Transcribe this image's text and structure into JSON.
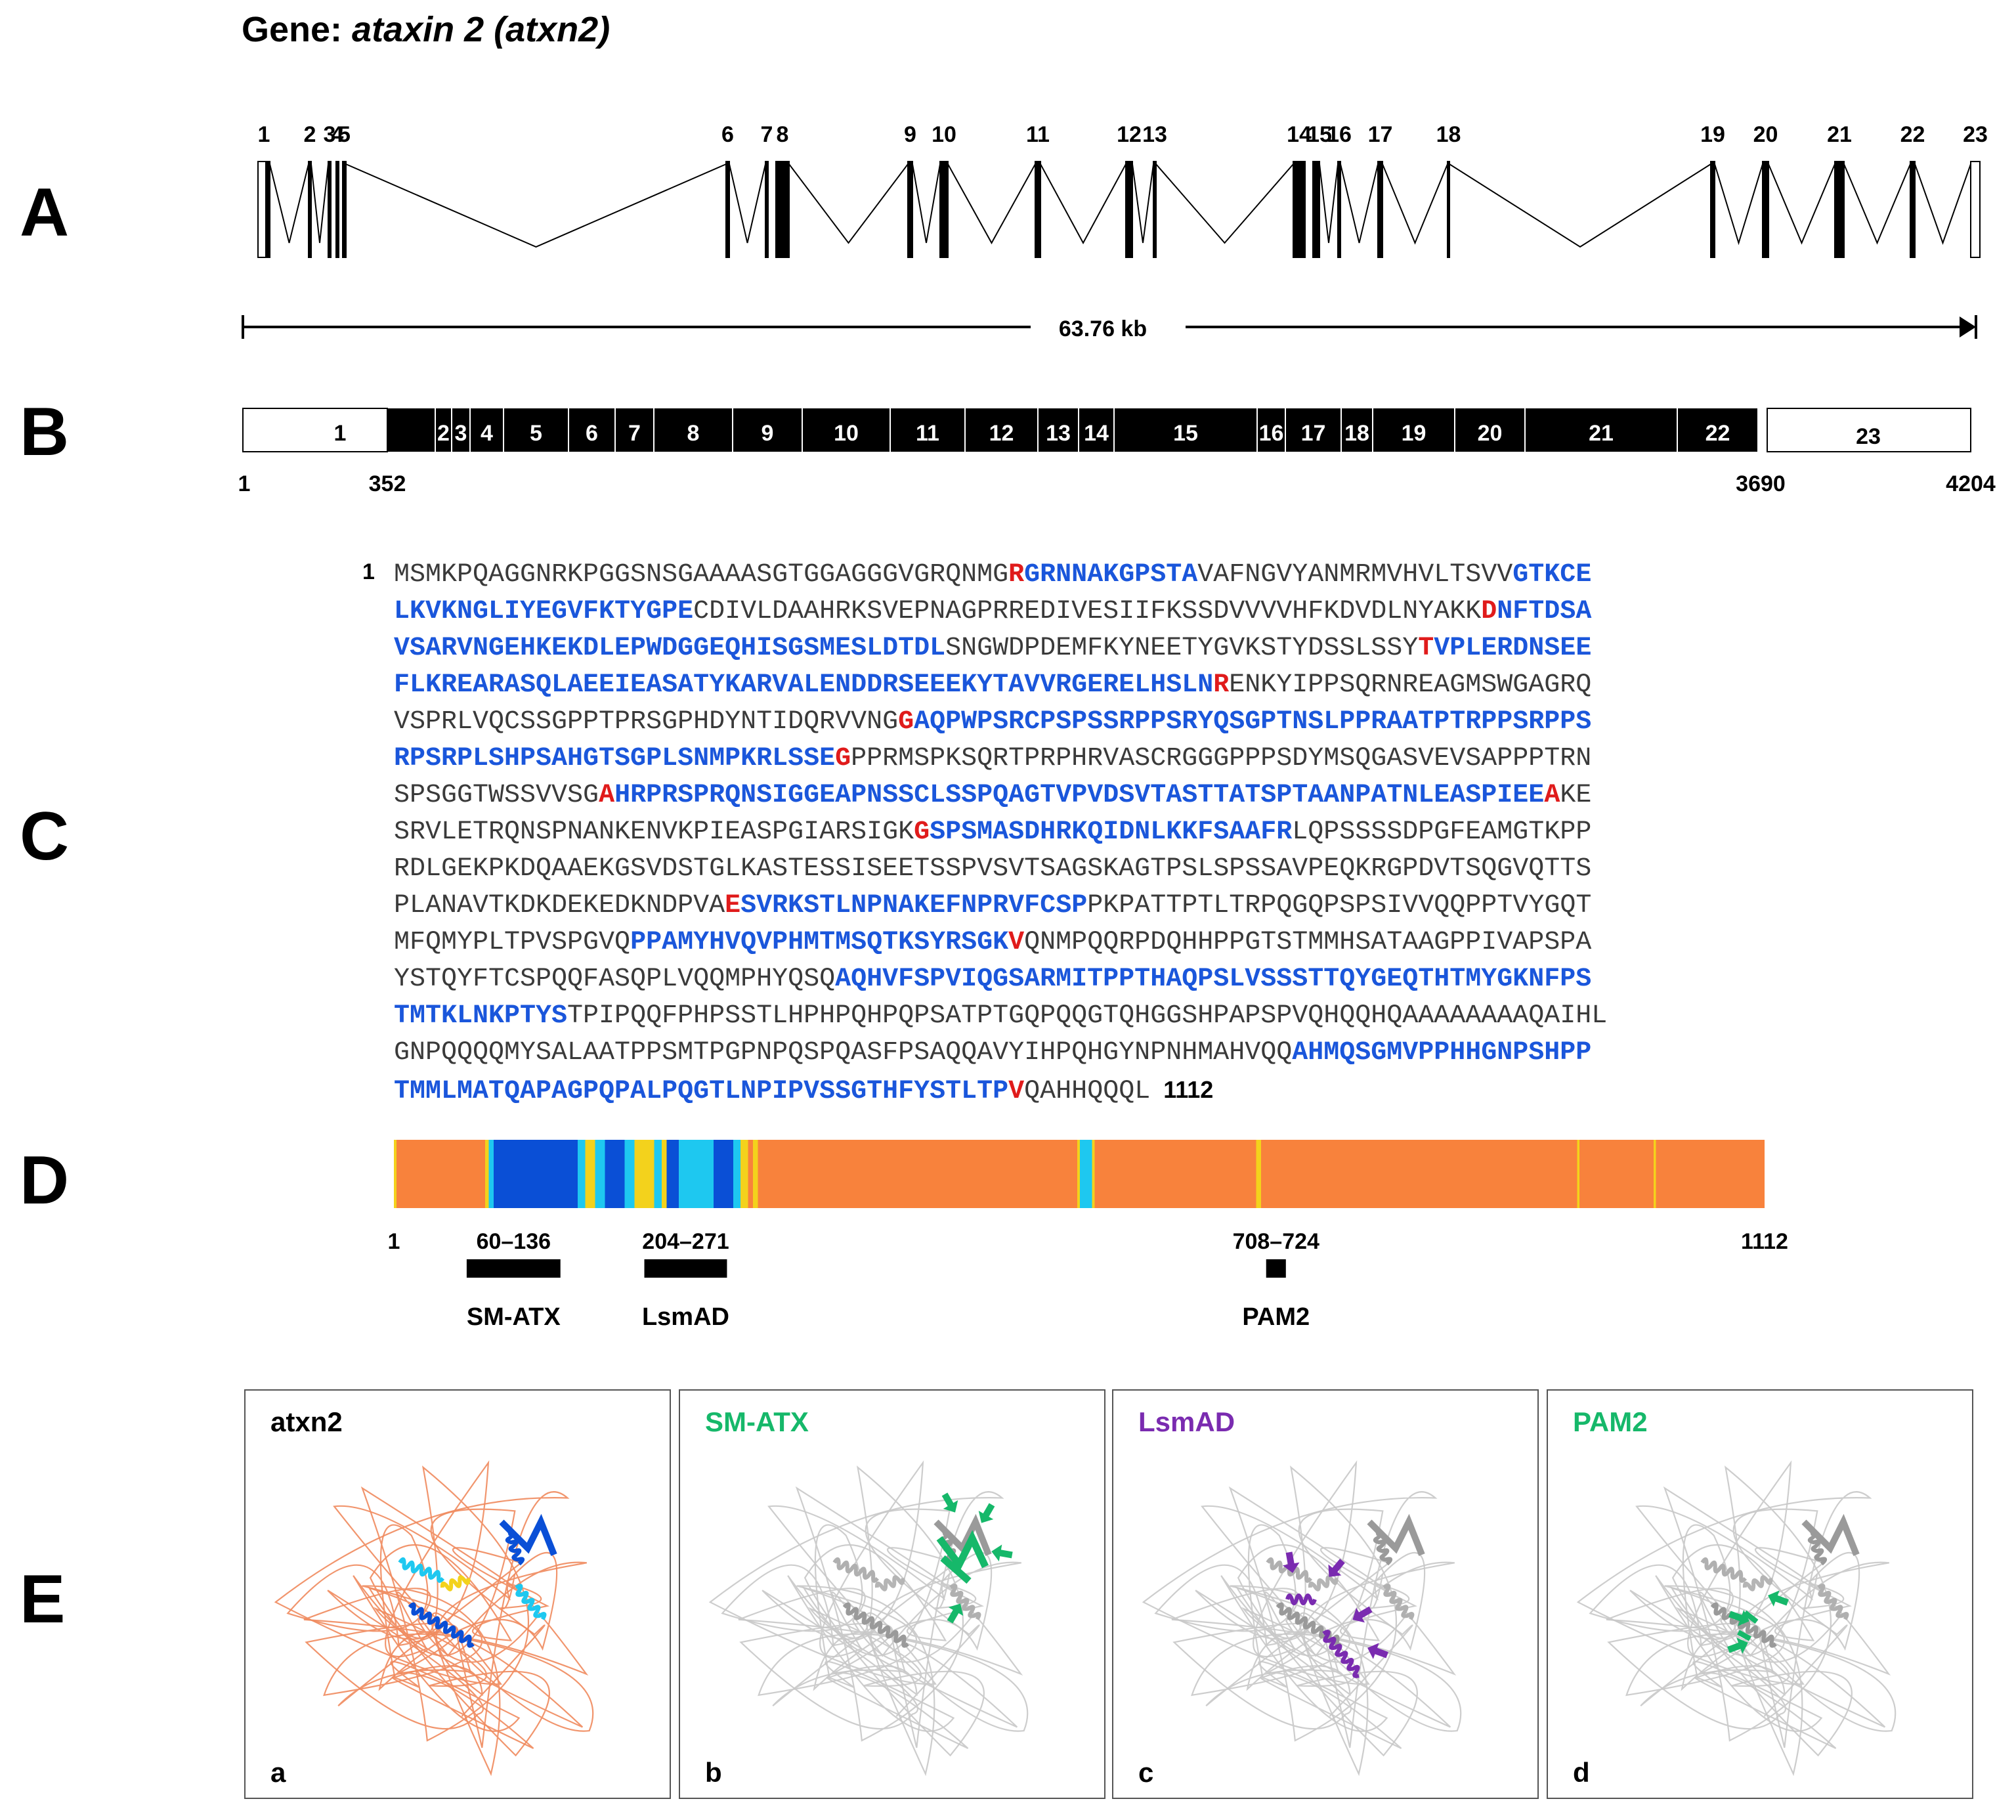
{
  "title": {
    "prefix": "Gene: ",
    "gene": "ataxin 2 (atxn2)"
  },
  "panels": {
    "a": "A",
    "b": "B",
    "c": "C",
    "d": "D",
    "e": "E"
  },
  "panel_a": {
    "exon_labels": [
      "1",
      "2",
      "3",
      "4",
      "5",
      "6",
      "7",
      "8",
      "9",
      "10",
      "11",
      "12",
      "13",
      "14",
      "15",
      "16",
      "17",
      "18",
      "19",
      "20",
      "21",
      "22",
      "23"
    ],
    "span_label": "63.76 kb"
  },
  "panel_b": {
    "exons": [
      "1",
      "2",
      "3",
      "4",
      "5",
      "6",
      "7",
      "8",
      "9",
      "10",
      "11",
      "12",
      "13",
      "14",
      "15",
      "16",
      "17",
      "18",
      "19",
      "20",
      "21",
      "22",
      "23"
    ],
    "positions": [
      "1",
      "352",
      "3690",
      "4204"
    ]
  },
  "panel_c": {
    "start": "1",
    "end": "1112",
    "lines": [
      [
        [
          "n",
          "MSMKPQAGGNRKPGGSNSGAAAASGTGGAGGGVGRQNMG"
        ],
        [
          "v",
          "R"
        ],
        [
          "d",
          "GRNNAKGPSTA"
        ],
        [
          "n",
          "VAFNGVYANMRMVHVLTSVV"
        ],
        [
          "d",
          "GTKCE"
        ]
      ],
      [
        [
          "d",
          "LKVKNGLIYEGVFKTYGPE"
        ],
        [
          "n",
          "CDIVLDAAHRKSVEPNAGPRREDIVESIIFKSSDVVVVHFKDVDLNYAKK"
        ],
        [
          "v",
          "D"
        ],
        [
          "d",
          "NFTDSA"
        ]
      ],
      [
        [
          "d",
          "VSARVNGEHKEKDLEPWDGGEQHISGSMESLDTDL"
        ],
        [
          "n",
          "SNGWDPDEMFKYNEETYGVKSTYDSSLSSY"
        ],
        [
          "v",
          "T"
        ],
        [
          "d",
          "VPLERDNSEE"
        ]
      ],
      [
        [
          "d",
          "FLKREARASQLAEEIEASATYKARVALENDDRSEEEKYTAVVRGERELHSLN"
        ],
        [
          "v",
          "R"
        ],
        [
          "n",
          "ENKYIPPSQRNREAGMSWGAGRQ"
        ]
      ],
      [
        [
          "n",
          "VSPRLVQCSSGPPTPRSGPHDYNTIDQRVVNG"
        ],
        [
          "v",
          "G"
        ],
        [
          "d",
          "AQPWPSRCPSPSSRPPSRYQSGPTNSLPPRAATPTRPPSRPPS"
        ]
      ],
      [
        [
          "d",
          "RPSRPLSHPSAHGTSGPLSNMPKRLSSE"
        ],
        [
          "v",
          "G"
        ],
        [
          "n",
          "PPRMSPKSQRTPRPHRVASCRGGGPPPSDYMSQGASVEVSAPPPTRN"
        ]
      ],
      [
        [
          "n",
          "SPSGGTWSSVVSG"
        ],
        [
          "v",
          "A"
        ],
        [
          "d",
          "HRPRSPRQNSIGGEAPNSSCLSSPQAGTVPVDSVTASTTATSPTAANPATNLEASPIEE"
        ],
        [
          "v",
          "A"
        ],
        [
          "n",
          "KE"
        ]
      ],
      [
        [
          "n",
          "SRVLETRQNSPNANKENVKPIEASPGIARSIGK"
        ],
        [
          "v",
          "G"
        ],
        [
          "d",
          "SPSMASDHRKQIDNLKKFSAAFR"
        ],
        [
          "n",
          "LQPSSSSDPGFEAMGTKPP"
        ]
      ],
      [
        [
          "n",
          "RDLGEKPKDQAAEKGSVDSTGLKASTESSISEETSSPVSVTSAGSKAGTPSLSPSSAVPEQKRGPDVTSQGVQTTS"
        ]
      ],
      [
        [
          "n",
          "PLANAVTKDKDEKEDKNDPVA"
        ],
        [
          "v",
          "E"
        ],
        [
          "d",
          "SVRKSTLNPNAKEFNPRVFCSP"
        ],
        [
          "n",
          "PKPATTPTLTRPQGQPSPSIVVQQPPTVYGQT"
        ]
      ],
      [
        [
          "n",
          "MFQMYPLTPVSPGVQ"
        ],
        [
          "d",
          "PPAMYHVQVPHMTMSQTKSYRSGK"
        ],
        [
          "v",
          "V"
        ],
        [
          "n",
          "QNMPQQRPDQHHPPGTSTMMHSATAAGPPIVAPSPA"
        ]
      ],
      [
        [
          "n",
          "YSTQYFTCSPQQFASQPLVQQMPHYQSQ"
        ],
        [
          "d",
          "AQHVFSPVIQGSARMITPPTHAQPSLVSSSTTQYGEQTHTMYGKNFPS"
        ]
      ],
      [
        [
          "d",
          "TMTKLNKPTYS"
        ],
        [
          "n",
          "TPIPQQFPHPSSTLHPHPQHPQPSATPTGQPQQGTQHGGSHPAPSPVQHQQHQAAAAAAAAQAIHL"
        ]
      ],
      [
        [
          "n",
          "GNPQQQQMYSALAATPPSMTPGPNPQSPQASFPSAQQAVYIHPQHGYNPNHMAHVQQ"
        ],
        [
          "d",
          "AHMQSGMVPPHHGNPSHPP"
        ]
      ],
      [
        [
          "d",
          "TMMLMATQAPAGPQPALPQGTLNPIPVSSGTHFYSTLTP"
        ],
        [
          "v",
          "V"
        ],
        [
          "n",
          "QAHHQQQL"
        ]
      ]
    ]
  },
  "panel_d": {
    "axis_start": "1",
    "axis_end": "1112",
    "domains": [
      {
        "name": "SM-ATX",
        "range": "60–136",
        "start": 60,
        "end": 136
      },
      {
        "name": "LsmAD",
        "range": "204–271",
        "start": 204,
        "end": 271
      },
      {
        "name": "PAM2",
        "range": "708–724",
        "start": 708,
        "end": 724
      }
    ],
    "confidence_colors": {
      "very_high": "#0a4fd6",
      "high": "#1ec8f0",
      "low": "#f3d21c",
      "very_low": "#f8823c"
    }
  },
  "panel_e": {
    "structures": [
      {
        "title": "atxn2",
        "letter": "a",
        "title_color": "#000000"
      },
      {
        "title": "SM-ATX",
        "letter": "b",
        "title_color": "#16b86a"
      },
      {
        "title": "LsmAD",
        "letter": "c",
        "title_color": "#7a2bb0"
      },
      {
        "title": "PAM2",
        "letter": "d",
        "title_color": "#16b86a"
      }
    ]
  },
  "colors": {
    "disordered": "#3a3a3a",
    "domain_text": "#1a56db",
    "variant": "#e01b1b",
    "green": "#16b86a",
    "purple": "#7a2bb0"
  }
}
